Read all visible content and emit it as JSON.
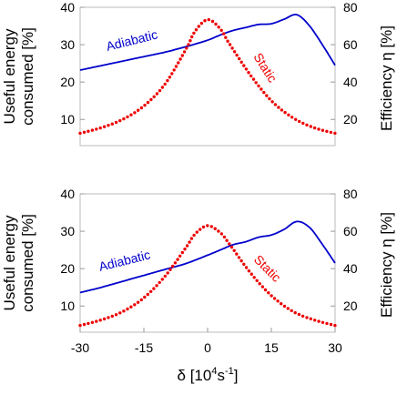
{
  "chart_data": [
    {
      "type": "line",
      "ylabel_left": [
        "Useful energy",
        "consumed [%]"
      ],
      "ylabel_right": "Efficiency η [%]",
      "xlim": [
        -30,
        30
      ],
      "ylim_left": [
        3,
        40
      ],
      "ylim_right": [
        6,
        80
      ],
      "yticks_left": [
        10,
        20,
        30,
        40
      ],
      "yticks_right": [
        20,
        40,
        60,
        80
      ],
      "grid": false,
      "series": [
        {
          "name": "Adiabatic",
          "color": "#0000cc",
          "style": "solid",
          "axis": "left",
          "x": [
            -30,
            -25,
            -20,
            -15,
            -10,
            -5,
            0,
            3,
            6,
            9,
            12,
            15,
            18,
            21,
            24,
            27,
            30
          ],
          "y": [
            23.2,
            24.4,
            25.6,
            26.8,
            28.0,
            29.5,
            31.2,
            32.6,
            33.8,
            34.6,
            35.4,
            35.6,
            36.8,
            38.0,
            35.0,
            30.0,
            24.5
          ]
        },
        {
          "name": "Static",
          "color": "#ee0000",
          "style": "dotted",
          "axis": "left",
          "x": [
            -30,
            -25,
            -20,
            -15,
            -10,
            -5,
            -3,
            0,
            3,
            5,
            10,
            15,
            20,
            25,
            30
          ],
          "y": [
            6.3,
            7.8,
            10.0,
            13.6,
            19.5,
            29.0,
            33.5,
            36.7,
            34.2,
            30.5,
            22.0,
            15.0,
            10.5,
            7.8,
            6.3
          ]
        }
      ],
      "annotations": [
        "Adiabatic",
        "Static"
      ]
    },
    {
      "type": "line",
      "ylabel_left": [
        "Useful energy",
        "consumed [%]"
      ],
      "ylabel_right": "Efficiency η [%]",
      "xlabel_main": "δ [10",
      "xlabel_sup1": "4",
      "xlabel_mid": "s",
      "xlabel_sup2": "-1",
      "xlabel_end": "]",
      "xlim": [
        -30,
        30
      ],
      "ylim_left": [
        3,
        40
      ],
      "ylim_right": [
        6,
        80
      ],
      "xticks": [
        -30,
        -15,
        0,
        15,
        30
      ],
      "yticks_left": [
        10,
        20,
        30,
        40
      ],
      "yticks_right": [
        20,
        40,
        60,
        80
      ],
      "grid": false,
      "series": [
        {
          "name": "Adiabatic",
          "color": "#0000cc",
          "style": "solid",
          "axis": "left",
          "x": [
            -30,
            -25,
            -20,
            -15,
            -10,
            -5,
            0,
            3,
            6,
            9,
            12,
            15,
            18,
            21,
            24,
            27,
            30
          ],
          "y": [
            13.6,
            15.0,
            16.6,
            18.2,
            19.8,
            21.4,
            23.6,
            25.0,
            26.4,
            27.2,
            28.4,
            29.0,
            30.5,
            32.6,
            31.0,
            26.5,
            21.5
          ]
        },
        {
          "name": "Static",
          "color": "#ee0000",
          "style": "dotted",
          "axis": "left",
          "x": [
            -30,
            -25,
            -20,
            -15,
            -10,
            -5,
            -3,
            0,
            3,
            5,
            10,
            15,
            20,
            25,
            30
          ],
          "y": [
            4.8,
            6.3,
            8.5,
            12.2,
            18.0,
            25.8,
            29.2,
            31.5,
            29.6,
            26.8,
            19.0,
            12.8,
            8.6,
            6.3,
            4.8
          ]
        }
      ],
      "annotations": [
        "Adiabatic",
        "Static"
      ]
    }
  ]
}
